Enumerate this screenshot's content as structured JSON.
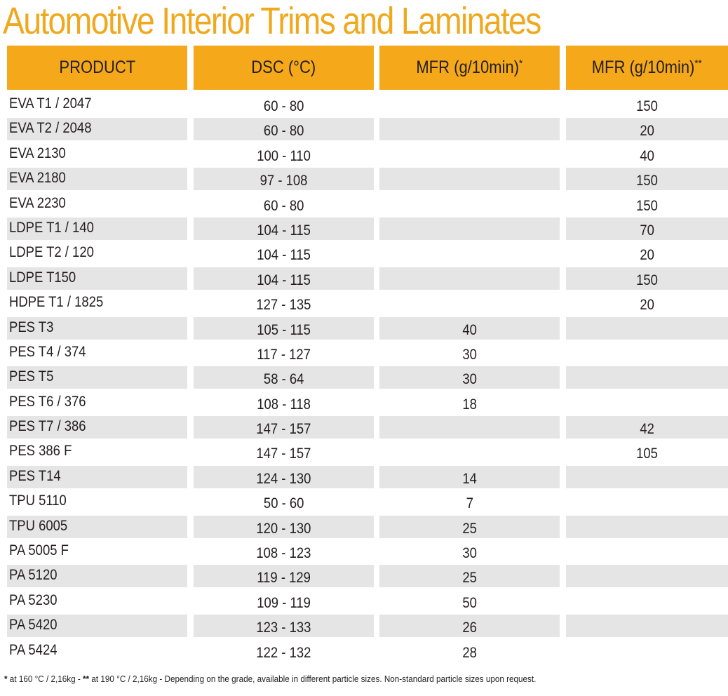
{
  "title": "Automotive Interior Trims and Laminates",
  "colors": {
    "accent": "#f6a81b",
    "title": "#f0a91e",
    "shade": "#e5e5e5"
  },
  "headers": {
    "product": "PRODUCT",
    "dsc": "DSC (°C)",
    "mfr1": "MFR (g/10min)",
    "mfr1_mark": "*",
    "mfr2": "MFR (g/10min)",
    "mfr2_mark": "**"
  },
  "rows": [
    {
      "product": "EVA T1 / 2047",
      "dsc": "60 - 80",
      "mfr1": "",
      "mfr2": "150"
    },
    {
      "product": "EVA T2 / 2048",
      "dsc": "60 - 80",
      "mfr1": "",
      "mfr2": "20"
    },
    {
      "product": "EVA 2130",
      "dsc": "100 - 110",
      "mfr1": "",
      "mfr2": "40"
    },
    {
      "product": "EVA 2180",
      "dsc": "97 - 108",
      "mfr1": "",
      "mfr2": "150"
    },
    {
      "product": "EVA 2230",
      "dsc": "60 - 80",
      "mfr1": "",
      "mfr2": "150"
    },
    {
      "product": "LDPE T1 / 140",
      "dsc": "104 - 115",
      "mfr1": "",
      "mfr2": "70"
    },
    {
      "product": "LDPE T2 / 120",
      "dsc": "104 - 115",
      "mfr1": "",
      "mfr2": "20"
    },
    {
      "product": "LDPE T150",
      "dsc": "104 - 115",
      "mfr1": "",
      "mfr2": "150"
    },
    {
      "product": "HDPE T1 / 1825",
      "dsc": "127 - 135",
      "mfr1": "",
      "mfr2": "20"
    },
    {
      "product": "PES T3",
      "dsc": "105 - 115",
      "mfr1": "40",
      "mfr2": ""
    },
    {
      "product": "PES T4 / 374",
      "dsc": "117 - 127",
      "mfr1": "30",
      "mfr2": ""
    },
    {
      "product": "PES T5",
      "dsc": "58 - 64",
      "mfr1": "30",
      "mfr2": ""
    },
    {
      "product": "PES T6 / 376",
      "dsc": "108 - 118",
      "mfr1": "18",
      "mfr2": ""
    },
    {
      "product": "PES T7 / 386",
      "dsc": "147 - 157",
      "mfr1": "",
      "mfr2": "42"
    },
    {
      "product": "PES 386 F",
      "dsc": "147 - 157",
      "mfr1": "",
      "mfr2": "105"
    },
    {
      "product": "PES T14",
      "dsc": "124 - 130",
      "mfr1": "14",
      "mfr2": ""
    },
    {
      "product": "TPU 5110",
      "dsc": "50 - 60",
      "mfr1": "7",
      "mfr2": ""
    },
    {
      "product": "TPU 6005",
      "dsc": "120 - 130",
      "mfr1": "25",
      "mfr2": ""
    },
    {
      "product": "PA 5005 F",
      "dsc": "108 - 123",
      "mfr1": "30",
      "mfr2": ""
    },
    {
      "product": "PA 5120",
      "dsc": "119 - 129",
      "mfr1": "25",
      "mfr2": ""
    },
    {
      "product": "PA 5230",
      "dsc": "109 - 119",
      "mfr1": "50",
      "mfr2": ""
    },
    {
      "product": "PA 5420",
      "dsc": "123 - 133",
      "mfr1": "26",
      "mfr2": ""
    },
    {
      "product": "PA 5424",
      "dsc": "122 - 132",
      "mfr1": "28",
      "mfr2": ""
    }
  ],
  "footnote": {
    "mark1": "*",
    "text1": " at 160 °C / 2,16kg   -   ",
    "mark2": "**",
    "text2": " at 190 °C / 2,16kg   -   Depending on the grade, available in different particle sizes. Non-standard particle sizes upon request."
  }
}
